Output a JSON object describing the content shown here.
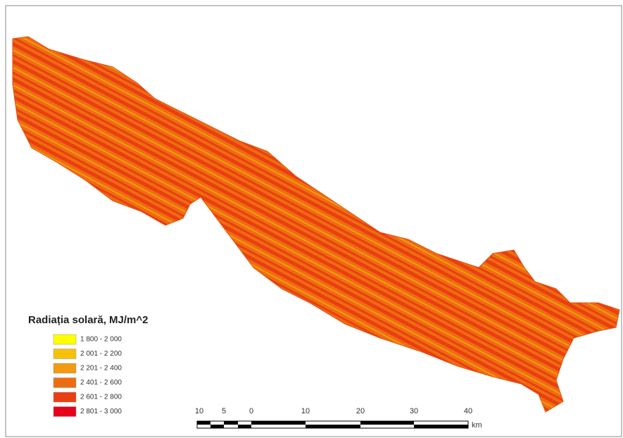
{
  "legend": {
    "title": "Radiația solară, MJ/m^2",
    "items": [
      {
        "label": "1 800 - 2 000",
        "color": "#ffff00"
      },
      {
        "label": "2 001 - 2 200",
        "color": "#f7c10a"
      },
      {
        "label": "2 201 - 2 400",
        "color": "#f29a12"
      },
      {
        "label": "2 401 - 2 600",
        "color": "#ee6c10"
      },
      {
        "label": "2 601 - 2 800",
        "color": "#ea3e12"
      },
      {
        "label": "2 801 - 3 000",
        "color": "#e6001a"
      }
    ]
  },
  "scale_bar": {
    "labels": [
      "10",
      "5",
      "0",
      "10",
      "20",
      "30",
      "40"
    ],
    "unit": "km"
  }
}
